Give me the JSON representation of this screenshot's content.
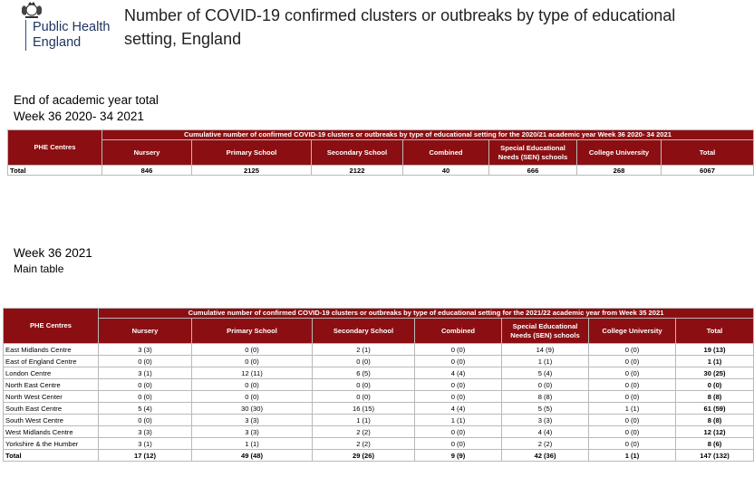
{
  "logo": {
    "line1": "Public Health",
    "line2": "England"
  },
  "title_line1": "Number of COVID-19 confirmed clusters or outbreaks by type of educational",
  "title_line2": "setting, England",
  "section1": {
    "label": "End of academic year total",
    "sublabel": "Week 36 2020- 34 2021"
  },
  "table1": {
    "header_span": "Cumulative number of confirmed COVID-19 clusters or outbreaks by type of educational setting for the 2020/21 academic year Week 36 2020- 34 2021",
    "columns": [
      "PHE Centres",
      "Nursery",
      "Primary School",
      "Secondary School",
      "Combined",
      "Special Educational Needs (SEN) schools",
      "College University",
      "Total"
    ],
    "total_row": [
      "Total",
      "846",
      "2125",
      "2122",
      "40",
      "666",
      "268",
      "6067"
    ]
  },
  "section2": {
    "label": "Week 36 2021",
    "sublabel": "Main table"
  },
  "table2": {
    "header_span": "Cumulative number of confirmed COVID-19 clusters or outbreaks by type of educational setting for the 2021/22 academic year from Week 35 2021",
    "columns": [
      "PHE Centres",
      "Nursery",
      "Primary School",
      "Secondary School",
      "Combined",
      "Special Educational Needs (SEN) schools",
      "College University",
      "Total"
    ],
    "rows": [
      [
        "East Midlands Centre",
        "3 (3)",
        "0 (0)",
        "2 (1)",
        "0 (0)",
        "14 (9)",
        "0 (0)",
        "19 (13)"
      ],
      [
        "East of England Centre",
        "0 (0)",
        "0 (0)",
        "0 (0)",
        "0 (0)",
        "1 (1)",
        "0 (0)",
        "1 (1)"
      ],
      [
        "London Centre",
        "3 (1)",
        "12 (11)",
        "6 (5)",
        "4 (4)",
        "5 (4)",
        "0 (0)",
        "30 (25)"
      ],
      [
        "North East Centre",
        "0 (0)",
        "0 (0)",
        "0 (0)",
        "0 (0)",
        "0 (0)",
        "0 (0)",
        "0 (0)"
      ],
      [
        "North West Center",
        "0 (0)",
        "0 (0)",
        "0 (0)",
        "0 (0)",
        "8 (8)",
        "0 (0)",
        "8 (8)"
      ],
      [
        "South East Centre",
        "5 (4)",
        "30 (30)",
        "16 (15)",
        "4 (4)",
        "5 (5)",
        "1 (1)",
        "61 (59)"
      ],
      [
        "South West Centre",
        "0 (0)",
        "3 (3)",
        "1 (1)",
        "1 (1)",
        "3 (3)",
        "0 (0)",
        "8 (8)"
      ],
      [
        "West Midlands Centre",
        "3 (3)",
        "3 (3)",
        "2 (2)",
        "0 (0)",
        "4 (4)",
        "0 (0)",
        "12 (12)"
      ],
      [
        "Yorkshire & the Humber",
        "3 (1)",
        "1 (1)",
        "2 (2)",
        "0 (0)",
        "2 (2)",
        "0 (0)",
        "8 (6)"
      ]
    ],
    "total_row": [
      "Total",
      "17 (12)",
      "49 (48)",
      "29 (26)",
      "9 (9)",
      "42 (36)",
      "1 (1)",
      "147 (132)"
    ]
  }
}
